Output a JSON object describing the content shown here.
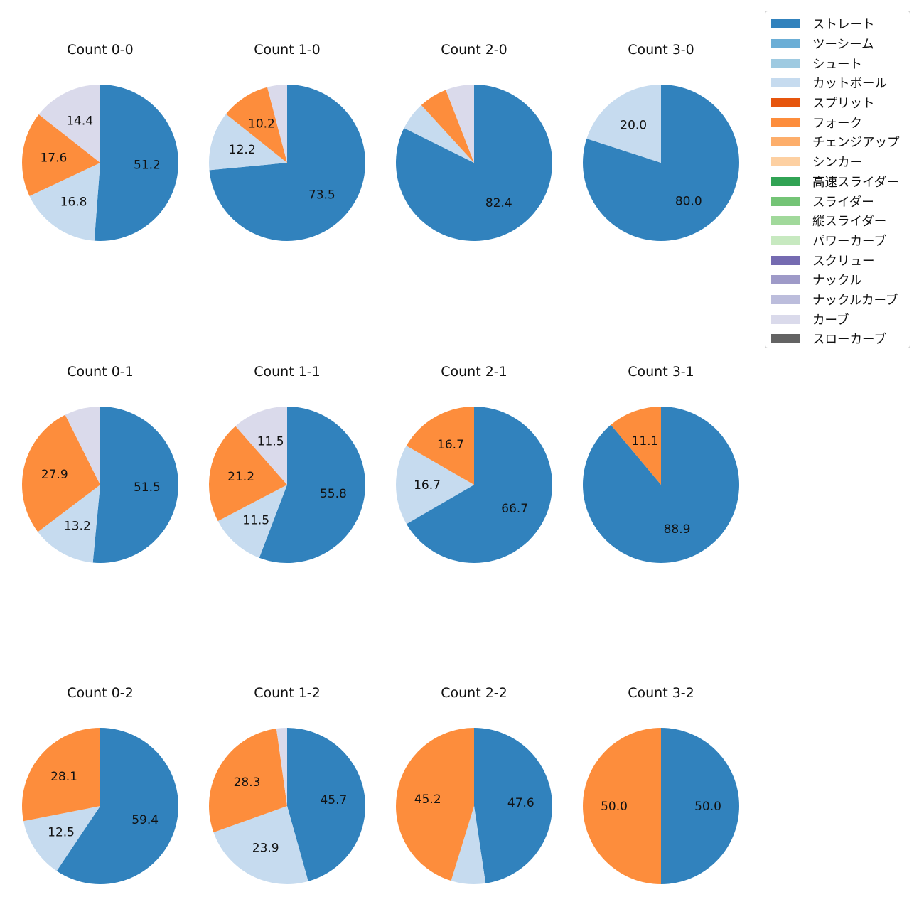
{
  "legend": {
    "items": [
      {
        "name": "ストレート",
        "color": "#3182bd"
      },
      {
        "name": "ツーシーム",
        "color": "#6baed6"
      },
      {
        "name": "シュート",
        "color": "#9ecae1"
      },
      {
        "name": "カットボール",
        "color": "#c6dbef"
      },
      {
        "name": "スプリット",
        "color": "#e6550d"
      },
      {
        "name": "フォーク",
        "color": "#fd8d3c"
      },
      {
        "name": "チェンジアップ",
        "color": "#fdae6b"
      },
      {
        "name": "シンカー",
        "color": "#fdd0a2"
      },
      {
        "name": "高速スライダー",
        "color": "#31a354"
      },
      {
        "name": "スライダー",
        "color": "#74c476"
      },
      {
        "name": "縦スライダー",
        "color": "#a1d99b"
      },
      {
        "name": "パワーカーブ",
        "color": "#c7e9c0"
      },
      {
        "name": "スクリュー",
        "color": "#756bb1"
      },
      {
        "name": "ナックル",
        "color": "#9e9ac8"
      },
      {
        "name": "ナックルカーブ",
        "color": "#bcbddc"
      },
      {
        "name": "カーブ",
        "color": "#dadaeb"
      },
      {
        "name": "スローカーブ",
        "color": "#636363"
      }
    ]
  },
  "chart_data": [
    {
      "type": "pie",
      "title": "Count 0-0",
      "slices": [
        {
          "label": "ストレート",
          "value": 51.2,
          "text": "51.2"
        },
        {
          "label": "カットボール",
          "value": 16.8,
          "text": "16.8"
        },
        {
          "label": "フォーク",
          "value": 17.6,
          "text": "17.6"
        },
        {
          "label": "カーブ",
          "value": 14.4,
          "text": "14.4"
        }
      ]
    },
    {
      "type": "pie",
      "title": "Count 1-0",
      "slices": [
        {
          "label": "ストレート",
          "value": 73.5,
          "text": "73.5"
        },
        {
          "label": "カットボール",
          "value": 12.2,
          "text": "12.2"
        },
        {
          "label": "フォーク",
          "value": 10.2,
          "text": "10.2"
        },
        {
          "label": "カーブ",
          "value": 4.1,
          "text": ""
        }
      ]
    },
    {
      "type": "pie",
      "title": "Count 2-0",
      "slices": [
        {
          "label": "ストレート",
          "value": 82.4,
          "text": "82.4"
        },
        {
          "label": "カットボール",
          "value": 5.9,
          "text": ""
        },
        {
          "label": "フォーク",
          "value": 5.9,
          "text": ""
        },
        {
          "label": "カーブ",
          "value": 5.9,
          "text": ""
        }
      ]
    },
    {
      "type": "pie",
      "title": "Count 3-0",
      "slices": [
        {
          "label": "ストレート",
          "value": 80.0,
          "text": "80.0"
        },
        {
          "label": "カットボール",
          "value": 20.0,
          "text": "20.0"
        }
      ]
    },
    {
      "type": "pie",
      "title": "Count 0-1",
      "slices": [
        {
          "label": "ストレート",
          "value": 51.5,
          "text": "51.5"
        },
        {
          "label": "カットボール",
          "value": 13.2,
          "text": "13.2"
        },
        {
          "label": "フォーク",
          "value": 27.9,
          "text": "27.9"
        },
        {
          "label": "カーブ",
          "value": 7.4,
          "text": ""
        }
      ]
    },
    {
      "type": "pie",
      "title": "Count 1-1",
      "slices": [
        {
          "label": "ストレート",
          "value": 55.8,
          "text": "55.8"
        },
        {
          "label": "カットボール",
          "value": 11.5,
          "text": "11.5"
        },
        {
          "label": "フォーク",
          "value": 21.2,
          "text": "21.2"
        },
        {
          "label": "カーブ",
          "value": 11.5,
          "text": "11.5"
        }
      ]
    },
    {
      "type": "pie",
      "title": "Count 2-1",
      "slices": [
        {
          "label": "ストレート",
          "value": 66.7,
          "text": "66.7"
        },
        {
          "label": "カットボール",
          "value": 16.7,
          "text": "16.7"
        },
        {
          "label": "フォーク",
          "value": 16.7,
          "text": "16.7"
        }
      ]
    },
    {
      "type": "pie",
      "title": "Count 3-1",
      "slices": [
        {
          "label": "ストレート",
          "value": 88.9,
          "text": "88.9"
        },
        {
          "label": "フォーク",
          "value": 11.1,
          "text": "11.1"
        }
      ]
    },
    {
      "type": "pie",
      "title": "Count 0-2",
      "slices": [
        {
          "label": "ストレート",
          "value": 59.4,
          "text": "59.4"
        },
        {
          "label": "カットボール",
          "value": 12.5,
          "text": "12.5"
        },
        {
          "label": "フォーク",
          "value": 28.1,
          "text": "28.1"
        }
      ]
    },
    {
      "type": "pie",
      "title": "Count 1-2",
      "slices": [
        {
          "label": "ストレート",
          "value": 45.7,
          "text": "45.7"
        },
        {
          "label": "カットボール",
          "value": 23.9,
          "text": "23.9"
        },
        {
          "label": "フォーク",
          "value": 28.3,
          "text": "28.3"
        },
        {
          "label": "カーブ",
          "value": 2.2,
          "text": ""
        }
      ]
    },
    {
      "type": "pie",
      "title": "Count 2-2",
      "slices": [
        {
          "label": "ストレート",
          "value": 47.6,
          "text": "47.6"
        },
        {
          "label": "カットボール",
          "value": 7.1,
          "text": ""
        },
        {
          "label": "フォーク",
          "value": 45.2,
          "text": "45.2"
        }
      ]
    },
    {
      "type": "pie",
      "title": "Count 3-2",
      "slices": [
        {
          "label": "ストレート",
          "value": 50.0,
          "text": "50.0"
        },
        {
          "label": "フォーク",
          "value": 50.0,
          "text": "50.0"
        }
      ]
    }
  ]
}
